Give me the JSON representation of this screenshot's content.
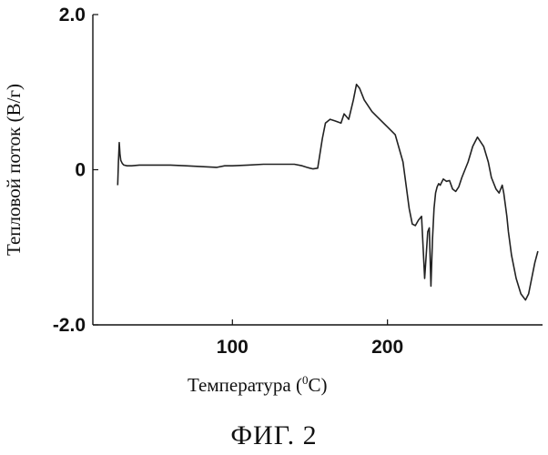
{
  "chart_data": {
    "type": "line",
    "title": "",
    "xlabel_main": "Температура (",
    "xlabel_sup": "0",
    "xlabel_tail": "C)",
    "ylabel": "Тепловой поток (В/г)",
    "xlim": [
      10,
      300
    ],
    "ylim": [
      -2.0,
      2.0
    ],
    "x_ticks": [
      100,
      200
    ],
    "x_tick_labels": [
      "100",
      "200"
    ],
    "y_ticks": [
      2.0,
      0,
      -2.0
    ],
    "y_tick_labels": [
      "2.0",
      "0",
      "-2.0"
    ],
    "grid": false,
    "legend": "none",
    "series": [
      {
        "color": "#222222",
        "x": [
          26,
          26.5,
          27,
          27.5,
          28,
          29,
          30,
          32,
          35,
          40,
          50,
          60,
          70,
          80,
          90,
          95,
          100,
          110,
          120,
          130,
          140,
          145,
          148,
          150,
          152,
          155,
          158,
          160,
          163,
          166,
          170,
          172,
          175,
          178,
          180,
          182,
          185,
          190,
          195,
          200,
          205,
          210,
          212,
          214,
          216,
          218,
          220,
          222,
          224,
          226,
          227,
          228,
          229,
          230,
          231,
          232,
          233,
          234,
          236,
          238,
          240,
          242,
          244,
          246,
          248,
          250,
          252,
          255,
          258,
          262,
          265,
          267,
          270,
          272,
          274,
          275,
          276,
          277,
          278,
          280,
          283,
          286,
          289,
          291,
          293,
          295,
          297
        ],
        "y": [
          -0.2,
          0.1,
          0.35,
          0.2,
          0.12,
          0.08,
          0.06,
          0.05,
          0.05,
          0.06,
          0.06,
          0.06,
          0.05,
          0.04,
          0.03,
          0.05,
          0.05,
          0.06,
          0.07,
          0.07,
          0.07,
          0.05,
          0.03,
          0.02,
          0.01,
          0.02,
          0.4,
          0.6,
          0.65,
          0.63,
          0.6,
          0.72,
          0.65,
          0.9,
          1.1,
          1.05,
          0.9,
          0.75,
          0.65,
          0.55,
          0.45,
          0.1,
          -0.2,
          -0.5,
          -0.7,
          -0.72,
          -0.65,
          -0.6,
          -1.4,
          -0.8,
          -0.75,
          -1.5,
          -0.9,
          -0.5,
          -0.3,
          -0.22,
          -0.18,
          -0.2,
          -0.12,
          -0.15,
          -0.14,
          -0.25,
          -0.28,
          -0.22,
          -0.1,
          0.0,
          0.1,
          0.3,
          0.42,
          0.3,
          0.1,
          -0.1,
          -0.25,
          -0.3,
          -0.2,
          -0.3,
          -0.45,
          -0.6,
          -0.8,
          -1.1,
          -1.4,
          -1.6,
          -1.68,
          -1.6,
          -1.4,
          -1.2,
          -1.05
        ]
      }
    ]
  },
  "caption": "ФИГ. 2"
}
